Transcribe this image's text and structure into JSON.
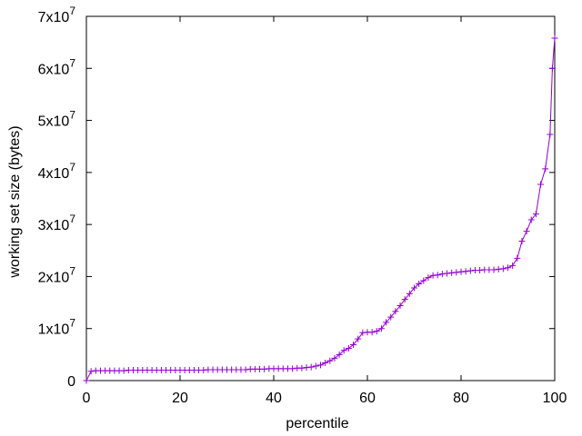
{
  "chart_data": {
    "type": "line",
    "title": "",
    "xlabel": "percentile",
    "ylabel": "working set size (bytes)",
    "xlim": [
      0,
      100
    ],
    "ylim": [
      0,
      70000000
    ],
    "x_ticks": [
      {
        "value": 0,
        "label": "0"
      },
      {
        "value": 20,
        "label": "20"
      },
      {
        "value": 40,
        "label": "40"
      },
      {
        "value": 60,
        "label": "60"
      },
      {
        "value": 80,
        "label": "80"
      },
      {
        "value": 100,
        "label": "100"
      }
    ],
    "y_ticks": [
      {
        "value": 0,
        "base": "0",
        "exp": ""
      },
      {
        "value": 10000000,
        "base": "1x10",
        "exp": "7"
      },
      {
        "value": 20000000,
        "base": "2x10",
        "exp": "7"
      },
      {
        "value": 30000000,
        "base": "3x10",
        "exp": "7"
      },
      {
        "value": 40000000,
        "base": "4x10",
        "exp": "7"
      },
      {
        "value": 50000000,
        "base": "5x10",
        "exp": "7"
      },
      {
        "value": 60000000,
        "base": "6x10",
        "exp": "7"
      },
      {
        "value": 70000000,
        "base": "7x10",
        "exp": "7"
      }
    ],
    "grid": false,
    "legend": "none",
    "marker": "plus",
    "colors": {
      "series": "#9400d3",
      "axis": "#000000"
    },
    "series": [
      {
        "x": [
          0,
          1,
          2,
          3,
          4,
          5,
          6,
          7,
          8,
          9,
          10,
          11,
          12,
          13,
          14,
          15,
          16,
          17,
          18,
          19,
          20,
          21,
          22,
          23,
          24,
          25,
          26,
          27,
          28,
          29,
          30,
          31,
          32,
          33,
          34,
          35,
          36,
          37,
          38,
          39,
          40,
          41,
          42,
          43,
          44,
          45,
          46,
          47,
          48,
          49,
          50,
          51,
          52,
          53,
          54,
          55,
          56,
          57,
          58,
          59,
          60,
          61,
          62,
          63,
          64,
          65,
          66,
          67,
          68,
          69,
          70,
          71,
          72,
          73,
          74,
          75,
          76,
          77,
          78,
          79,
          80,
          81,
          82,
          83,
          84,
          85,
          86,
          87,
          88,
          89,
          90,
          91,
          92,
          93,
          94,
          95,
          96,
          97,
          98,
          99,
          99.5,
          100
        ],
        "y": [
          0,
          1800000,
          1900000,
          1900000,
          1900000,
          1900000,
          1900000,
          1900000,
          1900000,
          2000000,
          2000000,
          2000000,
          2000000,
          2000000,
          2000000,
          2000000,
          2000000,
          2000000,
          2000000,
          2000000,
          2000000,
          2000000,
          2000000,
          2000000,
          2000000,
          2000000,
          2100000,
          2100000,
          2100000,
          2100000,
          2100000,
          2100000,
          2100000,
          2100000,
          2100000,
          2200000,
          2200000,
          2200000,
          2200000,
          2300000,
          2300000,
          2300000,
          2300000,
          2300000,
          2300000,
          2400000,
          2400000,
          2500000,
          2600000,
          2800000,
          3000000,
          3400000,
          3800000,
          4300000,
          5000000,
          5800000,
          6200000,
          6900000,
          8000000,
          9200000,
          9300000,
          9300000,
          9500000,
          10000000,
          11200000,
          12200000,
          13300000,
          14400000,
          15600000,
          16700000,
          17800000,
          18600000,
          19200000,
          19800000,
          20200000,
          20300000,
          20500000,
          20600000,
          20700000,
          20800000,
          20900000,
          21000000,
          21100000,
          21200000,
          21200000,
          21300000,
          21300000,
          21300000,
          21400000,
          21500000,
          21700000,
          22100000,
          23500000,
          26800000,
          28700000,
          30900000,
          32000000,
          37700000,
          40700000,
          47300000,
          60000000,
          65800000
        ]
      }
    ]
  }
}
